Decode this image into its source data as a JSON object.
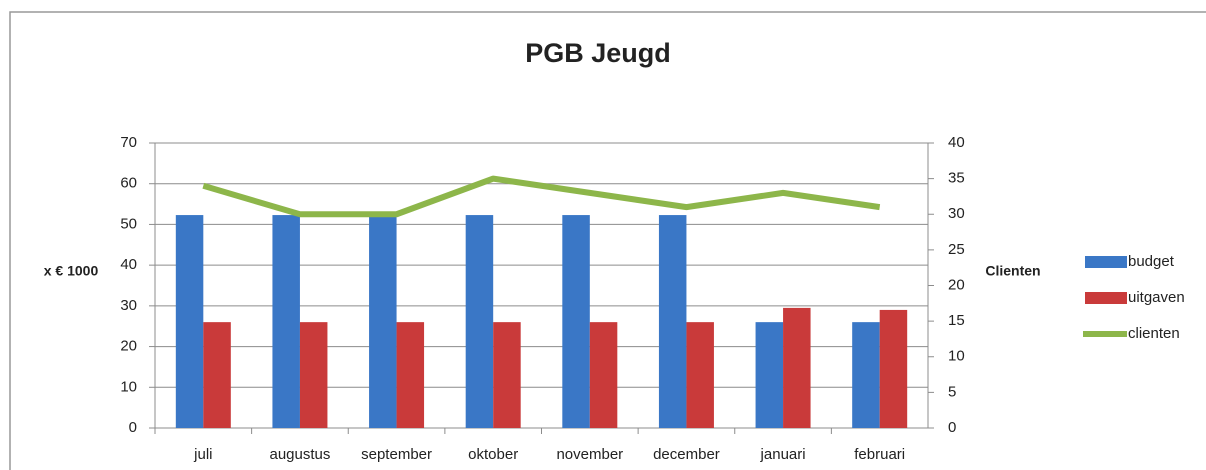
{
  "chart_data": {
    "type": "bar",
    "title": "PGB Jeugd",
    "ylabel": "x € 1000",
    "y2label": "Clienten",
    "categories": [
      "juli",
      "augustus",
      "september",
      "oktober",
      "november",
      "december",
      "januari",
      "februari"
    ],
    "series": [
      {
        "name": "budget",
        "color": "#3a77c6",
        "values": [
          52.3,
          52.3,
          52.3,
          52.3,
          52.3,
          52.3,
          26,
          26
        ]
      },
      {
        "name": "uitgaven",
        "color": "#c93a3a",
        "values": [
          26,
          26,
          26,
          26,
          26,
          26,
          29.5,
          29
        ]
      },
      {
        "name": "clienten",
        "color": "#8db64a",
        "type": "line",
        "axis": "y2",
        "values": [
          34,
          30,
          30,
          35,
          33,
          31,
          33,
          31
        ]
      }
    ],
    "ylim": [
      0,
      70
    ],
    "yticks": [
      0,
      10,
      20,
      30,
      40,
      50,
      60,
      70
    ],
    "y2lim": [
      0,
      40
    ],
    "y2ticks": [
      0,
      5,
      10,
      15,
      20,
      25,
      30,
      35,
      40
    ],
    "grid": true,
    "legend": "right"
  }
}
